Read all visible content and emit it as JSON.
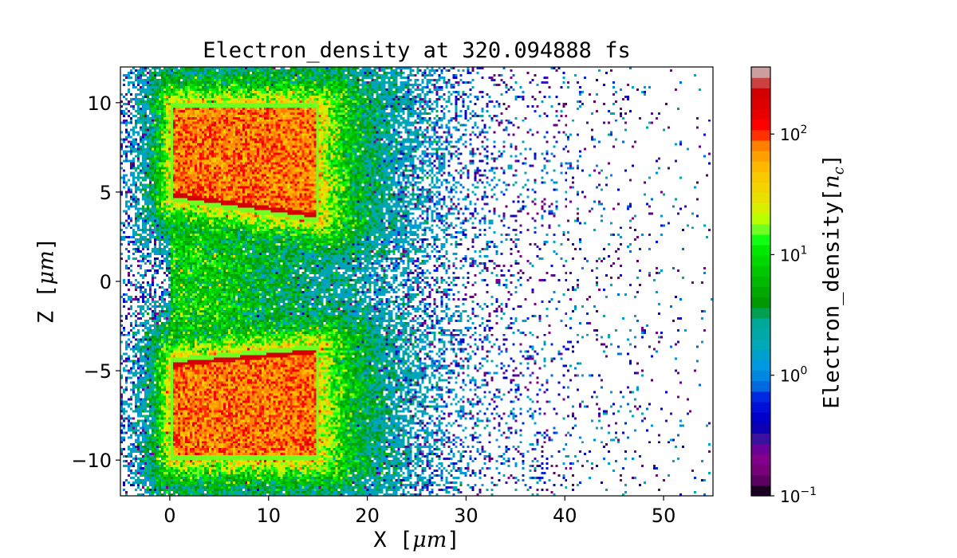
{
  "chart_data": {
    "type": "heatmap",
    "title": "Electron_density at 320.094888 fs",
    "xlabel": {
      "name": "X",
      "unit": "μm"
    },
    "ylabel": {
      "name": "Z",
      "unit": "μm"
    },
    "xlim": [
      -5,
      55
    ],
    "ylim": [
      -12,
      12
    ],
    "xticks": [
      0,
      10,
      20,
      30,
      40,
      50
    ],
    "xtick_labels": [
      "0",
      "10",
      "20",
      "30",
      "40",
      "50"
    ],
    "yticks": [
      -10,
      -5,
      0,
      5,
      10
    ],
    "ytick_labels": [
      "−10",
      "−5",
      "0",
      "5",
      "10"
    ],
    "grid": false,
    "features": {
      "targets": [
        {
          "x": [
            0,
            15
          ],
          "z": [
            4.5,
            10
          ],
          "density": 80
        },
        {
          "x": [
            0,
            15
          ],
          "z": [
            -10,
            -4.3
          ],
          "density": 80
        }
      ],
      "channel": {
        "x": [
          0,
          30
        ],
        "z": [
          -3.5,
          3.5
        ],
        "density": 8
      }
    },
    "colorbar": {
      "label_main": "Electron_density",
      "label_symbol": "n",
      "label_sub": "c",
      "scale": "log",
      "range": [
        0.1,
        360
      ],
      "ticks": [
        0.1,
        1,
        10,
        100
      ],
      "tick_bases": [
        "10",
        "10",
        "10",
        "10"
      ],
      "tick_exponents": [
        "−1",
        "0",
        "1",
        "2"
      ],
      "colormap": [
        "#1a0020",
        "#5a0060",
        "#780078",
        "#80008c",
        "#6a0098",
        "#3a10a0",
        "#0c00b0",
        "#0000c8",
        "#0010d8",
        "#0028e0",
        "#0068e0",
        "#0088e0",
        "#0098e0",
        "#00a0cc",
        "#00a8b8",
        "#00a8a8",
        "#00a89a",
        "#00a050",
        "#009800",
        "#00a800",
        "#00b800",
        "#00c800",
        "#00d800",
        "#00e800",
        "#10ff10",
        "#70ff20",
        "#b8ff00",
        "#d8f000",
        "#e8e000",
        "#f4d400",
        "#f8c800",
        "#ffb800",
        "#ffa000",
        "#ff8000",
        "#ff3000",
        "#ff0000",
        "#e80000",
        "#dc0000",
        "#d40000",
        "#cc4040",
        "#cc9e9e"
      ]
    }
  }
}
